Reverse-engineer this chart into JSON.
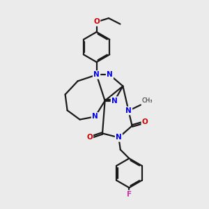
{
  "background_color": "#ebebeb",
  "bond_color": "#1a1a1a",
  "N_color": "#0000ee",
  "O_color": "#cc0000",
  "F_color": "#cc33aa",
  "line_width": 1.6,
  "figsize": [
    3.0,
    3.0
  ],
  "dpi": 100,
  "xlim": [
    0,
    10
  ],
  "ylim": [
    0,
    10
  ]
}
